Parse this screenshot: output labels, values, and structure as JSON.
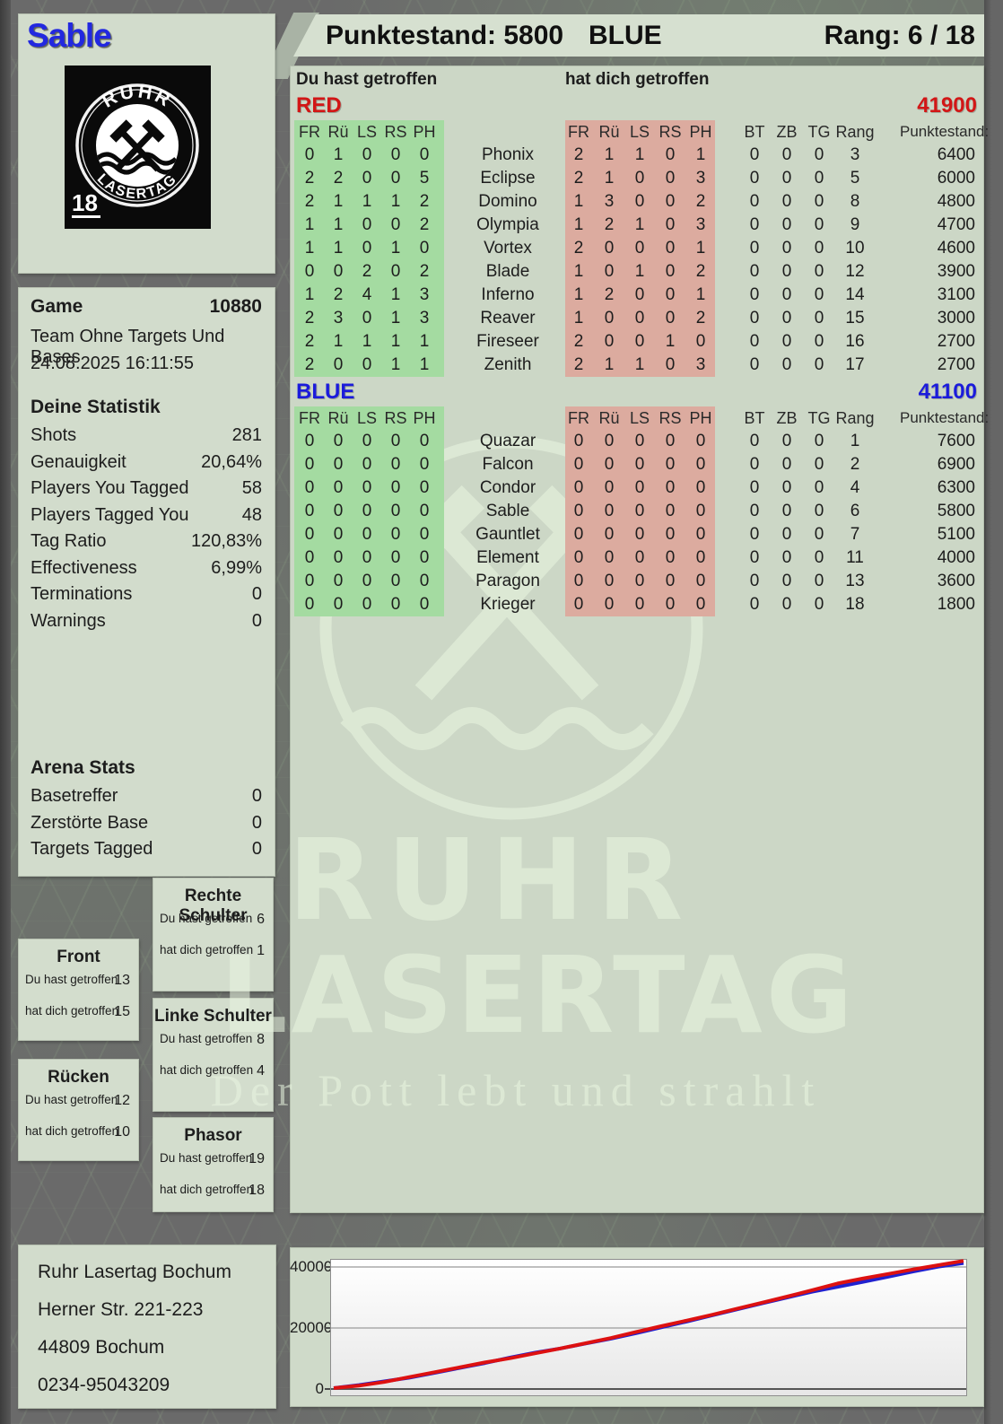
{
  "page": {
    "player_name": "Sable",
    "punktestand_header": "Punktestand: 5800",
    "team_header": "BLUE",
    "rang_header": "Rang: 6 / 18"
  },
  "labels": {
    "du": "Du hast getroffen",
    "dich": "hat dich getroffen"
  },
  "logo": {
    "arc_top": "RUHR",
    "arc_bottom": "LASERTAG",
    "age_badge": "18"
  },
  "game": {
    "title": "Game",
    "number": "10880",
    "mode": "Team Ohne Targets Und Bases",
    "datetime": "24.08.2025 16:11:55"
  },
  "deine_statistik": {
    "title": "Deine Statistik",
    "rows": [
      [
        "Shots",
        "281"
      ],
      [
        "Genauigkeit",
        "20,64%"
      ],
      [
        "Players You Tagged",
        "58"
      ],
      [
        "Players Tagged You",
        "48"
      ],
      [
        "Tag Ratio",
        "120,83%"
      ],
      [
        "Effectiveness",
        "6,99%"
      ],
      [
        "Terminations",
        "0"
      ],
      [
        "Warnings",
        "0"
      ]
    ]
  },
  "arena_stats": {
    "title": "Arena Stats",
    "rows": [
      [
        "Basetreffer",
        "0"
      ],
      [
        "Zerstörte Base",
        "0"
      ],
      [
        "Targets Tagged",
        "0"
      ]
    ]
  },
  "hit_boxes": [
    {
      "title": "Front",
      "du": "13",
      "dich": "15"
    },
    {
      "title": "Rücken",
      "du": "12",
      "dich": "10"
    },
    {
      "title": "Rechte Schulter",
      "du": "6",
      "dich": "1"
    },
    {
      "title": "Linke Schulter",
      "du": "8",
      "dich": "4"
    },
    {
      "title": "Phasor",
      "du": "19",
      "dich": "18"
    }
  ],
  "scoreboard": {
    "hit_cols": [
      "FR",
      "Rü",
      "LS",
      "RS",
      "PH"
    ],
    "extra_cols": [
      "BT",
      "ZB",
      "TG",
      "Rang",
      "Punktestand:"
    ],
    "teams": [
      {
        "name": "RED",
        "color": "#d21616",
        "total": "41900",
        "rows": [
          {
            "name": "Phonix",
            "given": [
              0,
              1,
              0,
              0,
              0
            ],
            "taken": [
              2,
              1,
              1,
              0,
              1
            ],
            "bt": 0,
            "zb": 0,
            "tg": 0,
            "rang": 3,
            "punktestand": 6400
          },
          {
            "name": "Eclipse",
            "given": [
              2,
              2,
              0,
              0,
              5
            ],
            "taken": [
              2,
              1,
              0,
              0,
              3
            ],
            "bt": 0,
            "zb": 0,
            "tg": 0,
            "rang": 5,
            "punktestand": 6000
          },
          {
            "name": "Domino",
            "given": [
              2,
              1,
              1,
              1,
              2
            ],
            "taken": [
              1,
              3,
              0,
              0,
              2
            ],
            "bt": 0,
            "zb": 0,
            "tg": 0,
            "rang": 8,
            "punktestand": 4800
          },
          {
            "name": "Olympia",
            "given": [
              1,
              1,
              0,
              0,
              2
            ],
            "taken": [
              1,
              2,
              1,
              0,
              3
            ],
            "bt": 0,
            "zb": 0,
            "tg": 0,
            "rang": 9,
            "punktestand": 4700
          },
          {
            "name": "Vortex",
            "given": [
              1,
              1,
              0,
              1,
              0
            ],
            "taken": [
              2,
              0,
              0,
              0,
              1
            ],
            "bt": 0,
            "zb": 0,
            "tg": 0,
            "rang": 10,
            "punktestand": 4600
          },
          {
            "name": "Blade",
            "given": [
              0,
              0,
              2,
              0,
              2
            ],
            "taken": [
              1,
              0,
              1,
              0,
              2
            ],
            "bt": 0,
            "zb": 0,
            "tg": 0,
            "rang": 12,
            "punktestand": 3900
          },
          {
            "name": "Inferno",
            "given": [
              1,
              2,
              4,
              1,
              3
            ],
            "taken": [
              1,
              2,
              0,
              0,
              1
            ],
            "bt": 0,
            "zb": 0,
            "tg": 0,
            "rang": 14,
            "punktestand": 3100
          },
          {
            "name": "Reaver",
            "given": [
              2,
              3,
              0,
              1,
              3
            ],
            "taken": [
              1,
              0,
              0,
              0,
              2
            ],
            "bt": 0,
            "zb": 0,
            "tg": 0,
            "rang": 15,
            "punktestand": 3000
          },
          {
            "name": "Fireseer",
            "given": [
              2,
              1,
              1,
              1,
              1
            ],
            "taken": [
              2,
              0,
              0,
              1,
              0
            ],
            "bt": 0,
            "zb": 0,
            "tg": 0,
            "rang": 16,
            "punktestand": 2700
          },
          {
            "name": "Zenith",
            "given": [
              2,
              0,
              0,
              1,
              1
            ],
            "taken": [
              2,
              1,
              1,
              0,
              3
            ],
            "bt": 0,
            "zb": 0,
            "tg": 0,
            "rang": 17,
            "punktestand": 2700
          }
        ]
      },
      {
        "name": "BLUE",
        "color": "#1b1bdb",
        "total": "41100",
        "rows": [
          {
            "name": "Quazar",
            "given": [
              0,
              0,
              0,
              0,
              0
            ],
            "taken": [
              0,
              0,
              0,
              0,
              0
            ],
            "bt": 0,
            "zb": 0,
            "tg": 0,
            "rang": 1,
            "punktestand": 7600
          },
          {
            "name": "Falcon",
            "given": [
              0,
              0,
              0,
              0,
              0
            ],
            "taken": [
              0,
              0,
              0,
              0,
              0
            ],
            "bt": 0,
            "zb": 0,
            "tg": 0,
            "rang": 2,
            "punktestand": 6900
          },
          {
            "name": "Condor",
            "given": [
              0,
              0,
              0,
              0,
              0
            ],
            "taken": [
              0,
              0,
              0,
              0,
              0
            ],
            "bt": 0,
            "zb": 0,
            "tg": 0,
            "rang": 4,
            "punktestand": 6300
          },
          {
            "name": "Sable",
            "given": [
              0,
              0,
              0,
              0,
              0
            ],
            "taken": [
              0,
              0,
              0,
              0,
              0
            ],
            "bt": 0,
            "zb": 0,
            "tg": 0,
            "rang": 6,
            "punktestand": 5800
          },
          {
            "name": "Gauntlet",
            "given": [
              0,
              0,
              0,
              0,
              0
            ],
            "taken": [
              0,
              0,
              0,
              0,
              0
            ],
            "bt": 0,
            "zb": 0,
            "tg": 0,
            "rang": 7,
            "punktestand": 5100
          },
          {
            "name": "Element",
            "given": [
              0,
              0,
              0,
              0,
              0
            ],
            "taken": [
              0,
              0,
              0,
              0,
              0
            ],
            "bt": 0,
            "zb": 0,
            "tg": 0,
            "rang": 11,
            "punktestand": 4000
          },
          {
            "name": "Paragon",
            "given": [
              0,
              0,
              0,
              0,
              0
            ],
            "taken": [
              0,
              0,
              0,
              0,
              0
            ],
            "bt": 0,
            "zb": 0,
            "tg": 0,
            "rang": 13,
            "punktestand": 3600
          },
          {
            "name": "Krieger",
            "given": [
              0,
              0,
              0,
              0,
              0
            ],
            "taken": [
              0,
              0,
              0,
              0,
              0
            ],
            "bt": 0,
            "zb": 0,
            "tg": 0,
            "rang": 18,
            "punktestand": 1800
          }
        ]
      }
    ]
  },
  "watermark": {
    "line1": "RUHR",
    "line2": "LASERTAG",
    "slogan": "Der Pott lebt und strahlt"
  },
  "address": [
    "Ruhr Lasertag Bochum",
    "Herner Str. 221-223",
    "44809 Bochum",
    "0234-95043209"
  ],
  "chart_data": {
    "type": "line",
    "title": "",
    "xlabel": "",
    "ylabel": "",
    "yticks": [
      0,
      20000,
      40000
    ],
    "ylim": [
      0,
      42600
    ],
    "grid": true,
    "legend": "none",
    "series": [
      {
        "name": "RED",
        "color": "#dd1111",
        "values": [
          300,
          1100,
          2300,
          3900,
          5500,
          7100,
          8700,
          10100,
          11700,
          13300,
          15000,
          16700,
          18700,
          20600,
          22400,
          24300,
          26300,
          28300,
          30300,
          32400,
          34600,
          36200,
          37700,
          39200,
          40600,
          42000
        ]
      },
      {
        "name": "BLUE",
        "color": "#2121cf",
        "values": [
          300,
          1300,
          2500,
          3700,
          5300,
          6900,
          8500,
          10300,
          11900,
          13300,
          14900,
          16500,
          18300,
          20200,
          22100,
          24100,
          26100,
          28100,
          30000,
          31900,
          33500,
          35100,
          36800,
          38500,
          40100,
          41300
        ]
      }
    ]
  }
}
